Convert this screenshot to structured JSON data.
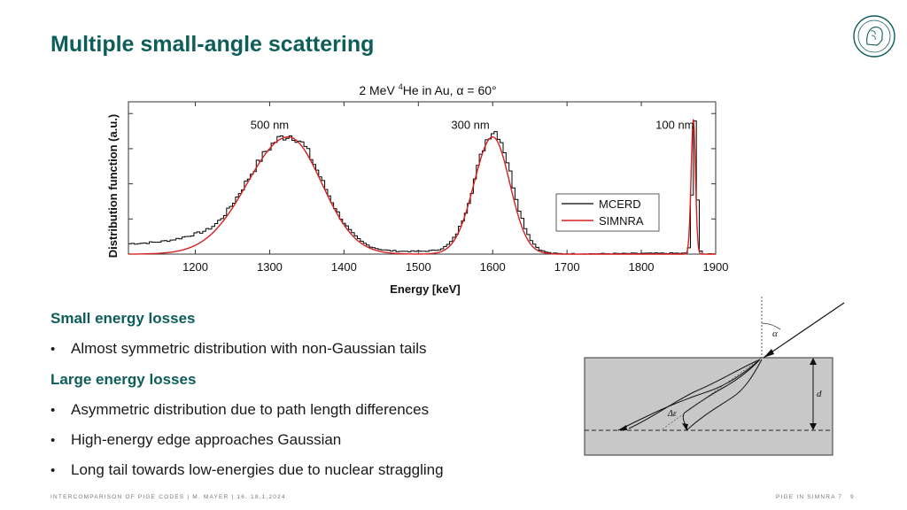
{
  "slide": {
    "title": "Multiple small-angle scattering",
    "sections": [
      {
        "heading": "Small energy losses",
        "bullets": [
          "Almost symmetric distribution with non-Gaussian tails"
        ]
      },
      {
        "heading": "Large energy losses",
        "bullets": [
          "Asymmetric distribution due to path length differences",
          "High-energy edge approaches Gaussian",
          "Long tail towards low-energies due to nuclear straggling"
        ]
      }
    ],
    "footer_left": "INTERCOMPARISON OF PIGE CODES | M. MAYER | 16.   18.1.2024",
    "footer_right": "PIGE IN SIMNRA 7",
    "page_number": "9"
  },
  "chart_data": {
    "type": "line",
    "title": "2 MeV 4He in Au, α = 60°",
    "title_parts": {
      "pre": "2 MeV ",
      "sup": "4",
      "post": "He in Au, α = 60°"
    },
    "xlabel": "Energy [keV]",
    "ylabel": "Distribution function (a.u.)",
    "xlim": [
      1110,
      1900
    ],
    "ylim": [
      0,
      1.3
    ],
    "xticks": [
      1200,
      1300,
      1400,
      1500,
      1600,
      1700,
      1800,
      1900
    ],
    "legend_position": "right",
    "annotations": [
      {
        "text": "500 nm",
        "x": 1300,
        "y": 1.1
      },
      {
        "text": "300 nm",
        "x": 1570,
        "y": 1.1
      },
      {
        "text": "100 nm",
        "x": 1845,
        "y": 1.1
      }
    ],
    "series": [
      {
        "name": "MCERD",
        "color": "#000000",
        "style": "step",
        "peaks": [
          {
            "label": "500 nm",
            "center": 1325,
            "sigma_low": 58,
            "sigma_high": 44,
            "amplitude": 1.0,
            "tail_amplitude": 0.12,
            "tail_slope": 90
          },
          {
            "label": "300 nm",
            "center": 1600,
            "sigma_low": 26,
            "sigma_high": 24,
            "amplitude": 1.05,
            "tail_amplitude": 0.03,
            "tail_slope": 60
          },
          {
            "label": "100 nm",
            "center": 1870,
            "sigma_low": 3.2,
            "sigma_high": 3.0,
            "amplitude": 1.1,
            "tail_amplitude": 0.01,
            "tail_slope": 20
          }
        ]
      },
      {
        "name": "SIMNRA",
        "color": "#d42020",
        "style": "smooth",
        "peaks": [
          {
            "label": "500 nm",
            "center": 1325,
            "sigma_low": 55,
            "sigma_high": 45,
            "amplitude": 1.0
          },
          {
            "label": "300 nm",
            "center": 1600,
            "sigma_low": 25,
            "sigma_high": 23,
            "amplitude": 1.0
          },
          {
            "label": "100 nm",
            "center": 1870,
            "sigma_low": 3.0,
            "sigma_high": 2.8,
            "amplitude": 1.15
          }
        ]
      }
    ]
  },
  "diagram": {
    "alpha_label": "α",
    "thickness_label": "d",
    "delta_label": "Δε"
  }
}
